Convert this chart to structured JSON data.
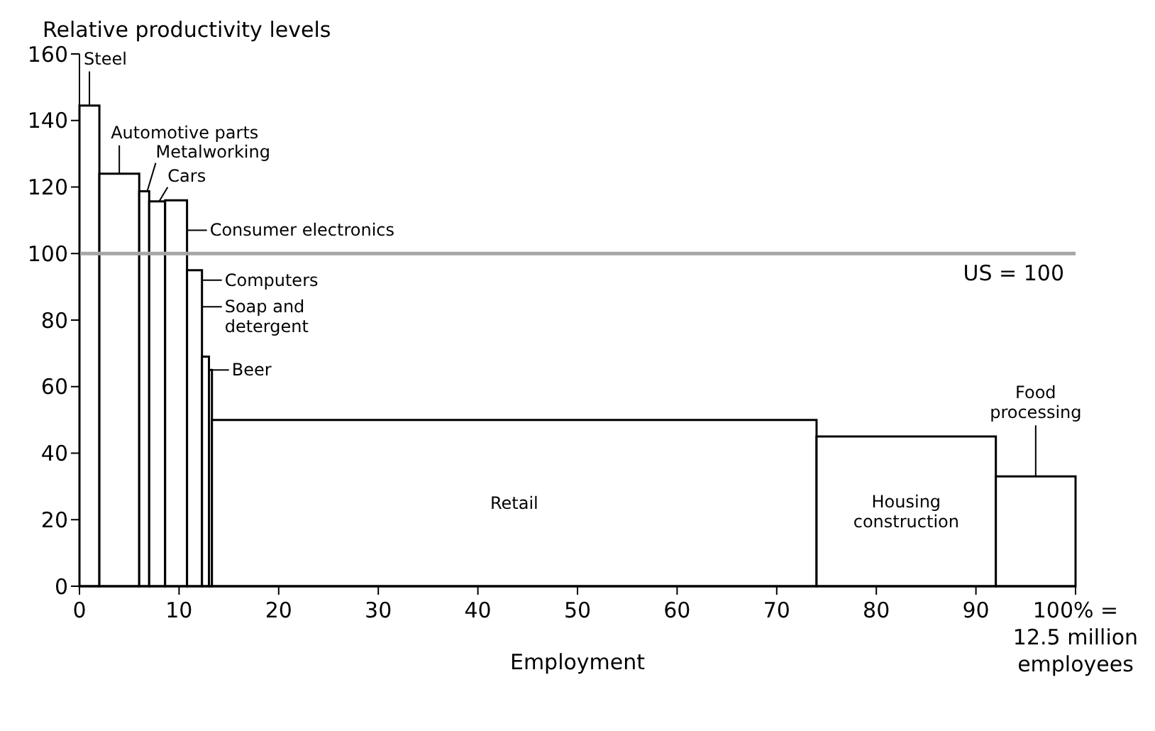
{
  "chart_data": {
    "type": "histogram",
    "ylabel": "Relative productivity levels",
    "xlabel": "Employment",
    "bins": [
      0,
      2,
      6,
      7,
      8.6,
      10.8,
      12.3,
      13,
      13.3,
      74,
      92,
      100
    ],
    "values": [
      144.5,
      124,
      118.7,
      115.7,
      116,
      95,
      69,
      65,
      50,
      45,
      33
    ],
    "color": "#ffffff",
    "xlim": [
      0,
      100
    ],
    "xticks": [
      0,
      10,
      20,
      30,
      40,
      50,
      60,
      70,
      80,
      90,
      {
        "value": 100,
        "label": "100% = 12.5 million employees"
      }
    ],
    "ylim": [
      0,
      160
    ],
    "yticks": [
      0,
      20,
      40,
      60,
      80,
      100,
      120,
      140,
      160
    ],
    "ref_lines": [
      {
        "axis": "y",
        "value": 100,
        "label": "US = 100",
        "color": "#a6a6a6"
      }
    ],
    "annotations": [
      {
        "text": "Steel",
        "x": 1,
        "y": 144.5
      },
      {
        "text": "Automotive parts",
        "x": 4,
        "y": 124
      },
      {
        "text": "Metalworking",
        "x": 6.8,
        "y": 118.7
      },
      {
        "text": "Cars",
        "x": 8,
        "y": 115.7
      },
      {
        "text": "Consumer electronics",
        "x": 10.8,
        "y": 107
      },
      {
        "text": "Computers",
        "x": 12.3,
        "y": 92
      },
      {
        "text": "Soap and detergent",
        "x": 12.3,
        "y": 84
      },
      {
        "text": "Beer",
        "x": 13.3,
        "y": 65
      },
      "Retail",
      "Housing construction",
      {
        "text": "Food processing",
        "x": 96,
        "y": 33
      }
    ]
  }
}
